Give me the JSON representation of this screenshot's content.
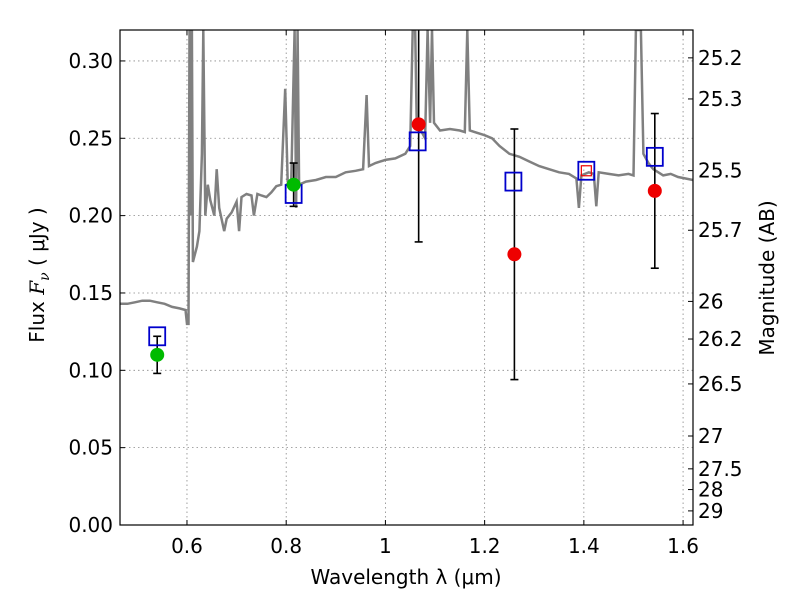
{
  "chart_data": {
    "type": "scatter",
    "title": "",
    "xlabel": "Wavelength  λ (μm)",
    "ylabel_left": {
      "prefix": "Flux  ",
      "symbol": "F",
      "subscript": "ν",
      "suffix": "  ( μJy )"
    },
    "ylabel_right": "Magnitude (AB)",
    "xlim": [
      0.465,
      1.62
    ],
    "ylim": [
      0.0,
      0.32
    ],
    "grid": true,
    "x_ticks": [
      {
        "value": 0.6,
        "label": "0.6"
      },
      {
        "value": 0.8,
        "label": "0.8"
      },
      {
        "value": 1.0,
        "label": "1"
      },
      {
        "value": 1.2,
        "label": "1.2"
      },
      {
        "value": 1.4,
        "label": "1.4"
      },
      {
        "value": 1.6,
        "label": "1.6"
      }
    ],
    "y_ticks": [
      {
        "value": 0.0,
        "label": "0.00"
      },
      {
        "value": 0.05,
        "label": "0.05"
      },
      {
        "value": 0.1,
        "label": "0.10"
      },
      {
        "value": 0.15,
        "label": "0.15"
      },
      {
        "value": 0.2,
        "label": "0.20"
      },
      {
        "value": 0.25,
        "label": "0.25"
      },
      {
        "value": 0.3,
        "label": "0.30"
      }
    ],
    "mag_ticks": [
      {
        "value": 29,
        "label": "29"
      },
      {
        "value": 28,
        "label": "28"
      },
      {
        "value": 27.5,
        "label": "27.5"
      },
      {
        "value": 27,
        "label": "27"
      },
      {
        "value": 26.5,
        "label": "26.5"
      },
      {
        "value": 26.2,
        "label": "26.2"
      },
      {
        "value": 26,
        "label": "26"
      },
      {
        "value": 25.7,
        "label": "25.7"
      },
      {
        "value": 25.5,
        "label": "25.5"
      },
      {
        "value": 25.3,
        "label": "25.3"
      },
      {
        "value": 25.2,
        "label": "25.2"
      }
    ],
    "colors": {
      "spectrum": "#808080",
      "model": "#0000cc",
      "green": "#00bb00",
      "red": "#ee0000",
      "errorbar": "#000000",
      "grid": "#888888"
    },
    "spectrum": [
      [
        0.465,
        0.143
      ],
      [
        0.48,
        0.143
      ],
      [
        0.495,
        0.144
      ],
      [
        0.51,
        0.145
      ],
      [
        0.525,
        0.145
      ],
      [
        0.54,
        0.144
      ],
      [
        0.555,
        0.143
      ],
      [
        0.57,
        0.141
      ],
      [
        0.585,
        0.14
      ],
      [
        0.597,
        0.139
      ],
      [
        0.6,
        0.13
      ],
      [
        0.603,
        0.13
      ],
      [
        0.605,
        0.32
      ],
      [
        0.607,
        0.2
      ],
      [
        0.61,
        0.32
      ],
      [
        0.612,
        0.17
      ],
      [
        0.62,
        0.18
      ],
      [
        0.625,
        0.19
      ],
      [
        0.63,
        0.24
      ],
      [
        0.633,
        0.32
      ],
      [
        0.637,
        0.2
      ],
      [
        0.642,
        0.22
      ],
      [
        0.647,
        0.21
      ],
      [
        0.655,
        0.2
      ],
      [
        0.66,
        0.23
      ],
      [
        0.665,
        0.205
      ],
      [
        0.675,
        0.19
      ],
      [
        0.68,
        0.198
      ],
      [
        0.69,
        0.202
      ],
      [
        0.7,
        0.209
      ],
      [
        0.705,
        0.19
      ],
      [
        0.71,
        0.212
      ],
      [
        0.72,
        0.214
      ],
      [
        0.73,
        0.213
      ],
      [
        0.735,
        0.2
      ],
      [
        0.742,
        0.214
      ],
      [
        0.75,
        0.213
      ],
      [
        0.76,
        0.212
      ],
      [
        0.77,
        0.215
      ],
      [
        0.78,
        0.219
      ],
      [
        0.79,
        0.22
      ],
      [
        0.798,
        0.282
      ],
      [
        0.803,
        0.222
      ],
      [
        0.81,
        0.221
      ],
      [
        0.817,
        0.32
      ],
      [
        0.82,
        0.205
      ],
      [
        0.823,
        0.32
      ],
      [
        0.826,
        0.22
      ],
      [
        0.84,
        0.222
      ],
      [
        0.86,
        0.223
      ],
      [
        0.88,
        0.225
      ],
      [
        0.9,
        0.225
      ],
      [
        0.92,
        0.228
      ],
      [
        0.94,
        0.229
      ],
      [
        0.955,
        0.23
      ],
      [
        0.962,
        0.278
      ],
      [
        0.967,
        0.232
      ],
      [
        0.98,
        0.234
      ],
      [
        1.0,
        0.236
      ],
      [
        1.02,
        0.237
      ],
      [
        1.04,
        0.24
      ],
      [
        1.05,
        0.245
      ],
      [
        1.055,
        0.32
      ],
      [
        1.06,
        0.32
      ],
      [
        1.063,
        0.26
      ],
      [
        1.08,
        0.25
      ],
      [
        1.085,
        0.32
      ],
      [
        1.09,
        0.26
      ],
      [
        1.094,
        0.32
      ],
      [
        1.098,
        0.26
      ],
      [
        1.11,
        0.255
      ],
      [
        1.13,
        0.256
      ],
      [
        1.15,
        0.255
      ],
      [
        1.16,
        0.254
      ],
      [
        1.165,
        0.32
      ],
      [
        1.17,
        0.255
      ],
      [
        1.18,
        0.254
      ],
      [
        1.2,
        0.252
      ],
      [
        1.215,
        0.25
      ],
      [
        1.23,
        0.245
      ],
      [
        1.25,
        0.24
      ],
      [
        1.27,
        0.238
      ],
      [
        1.29,
        0.235
      ],
      [
        1.31,
        0.232
      ],
      [
        1.33,
        0.23
      ],
      [
        1.35,
        0.228
      ],
      [
        1.37,
        0.227
      ],
      [
        1.385,
        0.224
      ],
      [
        1.39,
        0.205
      ],
      [
        1.395,
        0.226
      ],
      [
        1.41,
        0.228
      ],
      [
        1.42,
        0.227
      ],
      [
        1.425,
        0.206
      ],
      [
        1.43,
        0.228
      ],
      [
        1.45,
        0.227
      ],
      [
        1.47,
        0.226
      ],
      [
        1.49,
        0.227
      ],
      [
        1.5,
        0.226
      ],
      [
        1.505,
        0.32
      ],
      [
        1.515,
        0.32
      ],
      [
        1.52,
        0.24
      ],
      [
        1.53,
        0.234
      ],
      [
        1.54,
        0.23
      ],
      [
        1.55,
        0.228
      ],
      [
        1.56,
        0.226
      ],
      [
        1.575,
        0.227
      ],
      [
        1.59,
        0.225
      ],
      [
        1.605,
        0.224
      ],
      [
        1.62,
        0.223
      ]
    ],
    "model_points": [
      {
        "x": 0.54,
        "y": 0.122
      },
      {
        "x": 0.815,
        "y": 0.214
      },
      {
        "x": 1.065,
        "y": 0.248
      },
      {
        "x": 1.258,
        "y": 0.222
      },
      {
        "x": 1.405,
        "y": 0.229
      },
      {
        "x": 1.543,
        "y": 0.238
      }
    ],
    "observed_points": [
      {
        "x": 0.54,
        "y": 0.11,
        "err": 0.012,
        "color": "green"
      },
      {
        "x": 0.815,
        "y": 0.22,
        "err": 0.014,
        "color": "green"
      },
      {
        "x": 1.067,
        "y": 0.259,
        "err": 0.076,
        "color": "red"
      },
      {
        "x": 1.26,
        "y": 0.175,
        "err": 0.081,
        "color": "red"
      },
      {
        "x": 1.405,
        "y": 0.229,
        "err": null,
        "color": "red-small"
      },
      {
        "x": 1.543,
        "y": 0.216,
        "err": 0.05,
        "color": "red"
      }
    ]
  }
}
